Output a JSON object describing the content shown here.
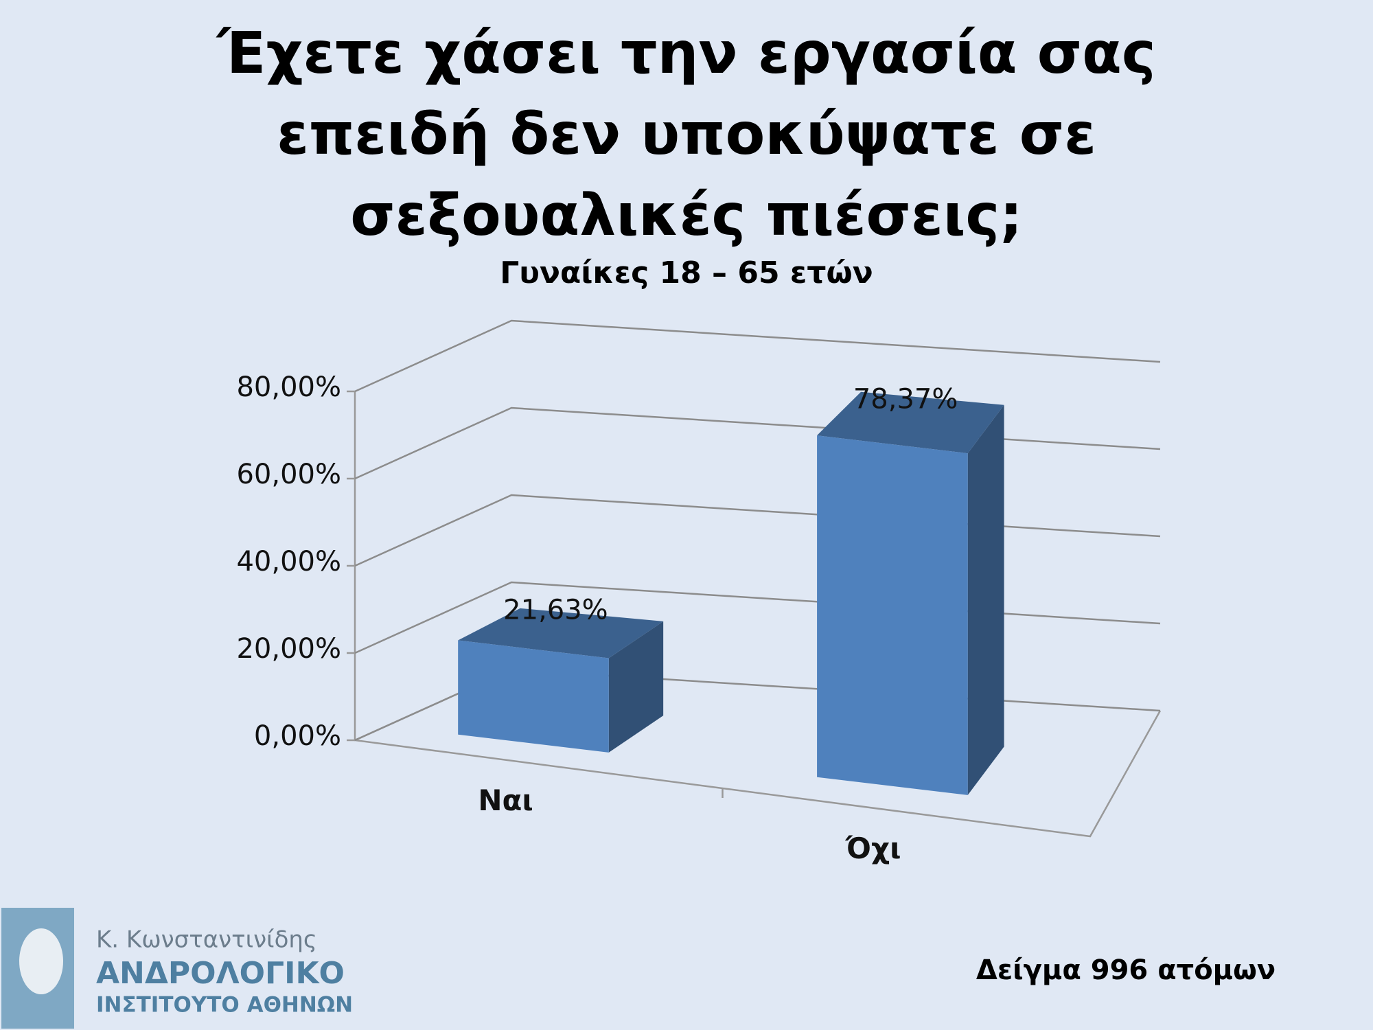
{
  "chart_data": {
    "type": "bar",
    "title": "Έχετε χάσει την εργασία σας επειδή δεν υποκύψατε σε σεξουαλικές πιέσεις;",
    "subtitle": "Γυναίκες 18 – 65 ετών",
    "categories": [
      "Ναι",
      "Όχι"
    ],
    "values": [
      21.63,
      78.37
    ],
    "value_labels": [
      "21,63%",
      "78,37%"
    ],
    "color": "#4f81bd",
    "ylim": [
      0,
      80
    ],
    "yticks": [
      {
        "value": 0,
        "label": "0,00%"
      },
      {
        "value": 20,
        "label": "20,00%"
      },
      {
        "value": 40,
        "label": "40,00%"
      },
      {
        "value": 60,
        "label": "60,00%"
      },
      {
        "value": 80,
        "label": "80,00%"
      }
    ],
    "grid": true,
    "annotations": [
      "Δείγμα 996 ατόμων"
    ]
  },
  "logo": {
    "line1": "Κ. Κωνσταντινίδης",
    "line2": "ΑΝΔΡΟΛΟΓΙΚΟ",
    "line3": "ΙΝΣΤΙΤΟΥΤΟ ΑΘΗΝΩΝ"
  }
}
